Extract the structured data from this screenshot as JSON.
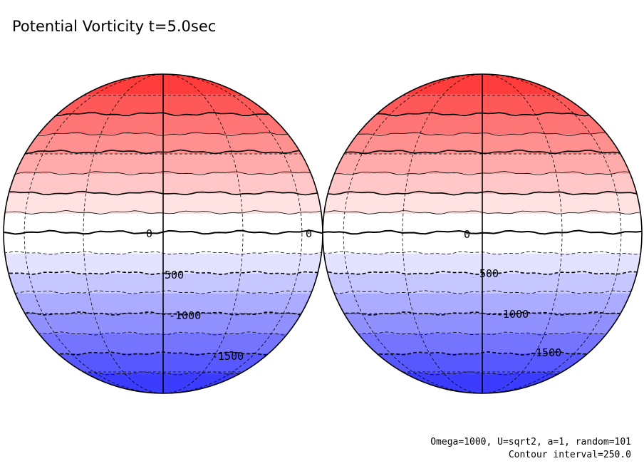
{
  "title": "Potential Vorticity t=5.0sec",
  "footnote": {
    "params": "Omega=1000, U=sqrt2, a=1, random=101",
    "interval": "Contour interval=250.0"
  },
  "colors": {
    "top_color": "#ff3c3c",
    "mid_color": "#ffffff",
    "bottom_color": "#3c3cff",
    "line_color": "#000000"
  },
  "globes": [
    {
      "name": "left",
      "labels": [
        "0",
        "0",
        "500",
        "-1000",
        "-1500"
      ]
    },
    {
      "name": "right",
      "labels": [
        "0",
        "500",
        "-1000",
        "-1500"
      ]
    }
  ]
}
